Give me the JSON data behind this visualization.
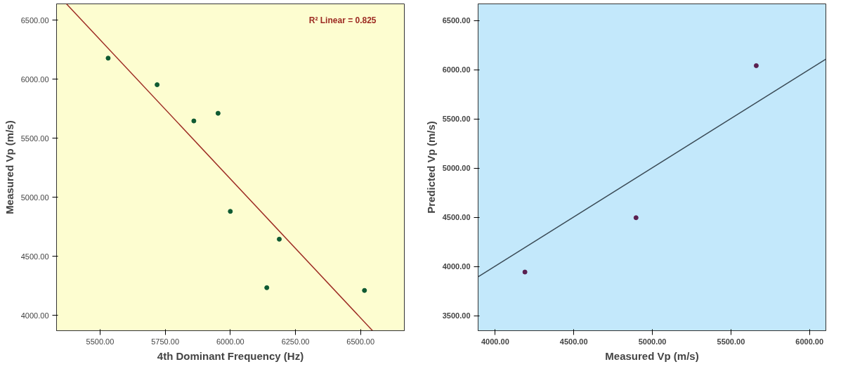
{
  "chart_data": [
    {
      "type": "scatter",
      "xlabel": "4th Dominant Frequency (Hz)",
      "ylabel": "Measured Vp (m/s)",
      "xlim": [
        5333,
        6668
      ],
      "ylim": [
        3870,
        6639
      ],
      "xticks": [
        {
          "value": 5500,
          "label": "5500.00"
        },
        {
          "value": 5750,
          "label": "5750.00"
        },
        {
          "value": 6000,
          "label": "6000.00"
        },
        {
          "value": 6250,
          "label": "6250.00"
        },
        {
          "value": 6500,
          "label": "6500.00"
        }
      ],
      "yticks": [
        {
          "value": 4000,
          "label": "4000.00"
        },
        {
          "value": 4500,
          "label": "4500.00"
        },
        {
          "value": 5000,
          "label": "5000.00"
        },
        {
          "value": 5500,
          "label": "5500.00"
        },
        {
          "value": 6000,
          "label": "6000.00"
        },
        {
          "value": 6500,
          "label": "6500.00"
        }
      ],
      "grid": false,
      "annotations": [
        "R² Linear = 0.825"
      ],
      "series": [
        {
          "marker": "circle",
          "color": "#0f5a32",
          "x": [
            5531,
            5719,
            5860,
            5953,
            6000,
            6188,
            6140,
            6515
          ],
          "values": [
            6179,
            5954,
            5647,
            5712,
            4881,
            4645,
            4234,
            4211
          ]
        },
        {
          "type": "line",
          "marker": "none",
          "color": "#9c2a22",
          "x": [
            5371,
            6546
          ],
          "values": [
            6639,
            3870
          ]
        }
      ]
    },
    {
      "type": "scatter",
      "xlabel": "Measured Vp (m/s)",
      "ylabel": "Predicted Vp (m/s)",
      "xlim": [
        3891,
        6104
      ],
      "ylim": [
        3350,
        6671
      ],
      "xticks": [
        {
          "value": 4000,
          "label": "4000.00"
        },
        {
          "value": 4500,
          "label": "4500.00"
        },
        {
          "value": 5000,
          "label": "5000.00"
        },
        {
          "value": 5500,
          "label": "5500.00"
        },
        {
          "value": 6000,
          "label": "6000.00"
        }
      ],
      "yticks": [
        {
          "value": 3500,
          "label": "3500.00"
        },
        {
          "value": 4000,
          "label": "4000.00"
        },
        {
          "value": 4500,
          "label": "4500.00"
        },
        {
          "value": 5000,
          "label": "5000.00"
        },
        {
          "value": 5500,
          "label": "5500.00"
        },
        {
          "value": 6000,
          "label": "6000.00"
        },
        {
          "value": 6500,
          "label": "6500.00"
        }
      ],
      "grid": false,
      "series": [
        {
          "marker": "circle",
          "color": "#5a2050",
          "x": [
            4189,
            4896,
            5661
          ],
          "values": [
            3946,
            4498,
            6043
          ]
        },
        {
          "type": "line",
          "marker": "none",
          "color": "#3a4a55",
          "x": [
            3891,
            6104
          ],
          "values": [
            3897,
            6110
          ]
        }
      ]
    }
  ]
}
